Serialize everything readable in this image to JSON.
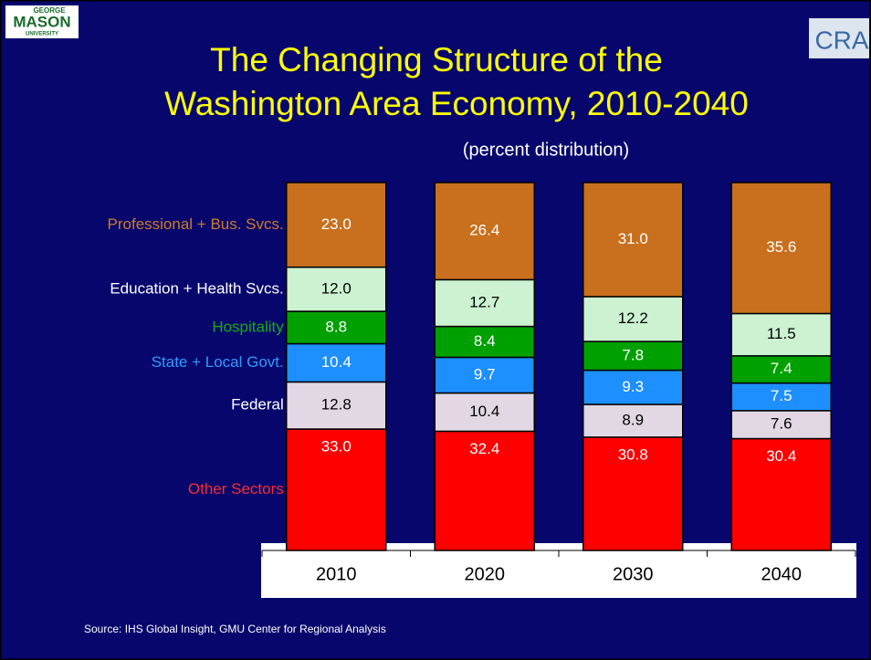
{
  "logos": {
    "left": [
      "GEORGE",
      "MASON",
      "UNIVERSITY"
    ],
    "right": "CRA"
  },
  "chart_data": {
    "type": "stacked-bar",
    "title": [
      "The Changing Structure of the",
      "Washington Area Economy, 2010-2040"
    ],
    "subtitle": "(percent distribution)",
    "source": "Source: IHS Global Insight, GMU Center for Regional Analysis",
    "categories": [
      "2010",
      "2020",
      "2030",
      "2040"
    ],
    "ylim": [
      0,
      100
    ],
    "series": [
      {
        "name": "Other Sectors",
        "color": "#ff0000",
        "label_color": "#ff2a2a",
        "text_color": "#ffffff",
        "values": [
          33.0,
          32.4,
          30.8,
          30.4
        ],
        "value_labels": [
          "33.0",
          "32.4",
          "30.8",
          "30.4"
        ]
      },
      {
        "name": "Federal",
        "color": "#e2d8e4",
        "label_color": "#ffffff",
        "text_color": "#000000",
        "values": [
          12.8,
          10.4,
          8.9,
          7.6
        ],
        "value_labels": [
          "12.8",
          "10.4",
          "8.9",
          "7.6"
        ]
      },
      {
        "name": "State + Local Govt.",
        "color": "#1e8fff",
        "label_color": "#2f9bff",
        "text_color": "#ffffff",
        "values": [
          10.4,
          9.7,
          9.3,
          7.5
        ],
        "value_labels": [
          "10.4",
          "9.7",
          "9.3",
          "7.5"
        ]
      },
      {
        "name": "Hospitality",
        "color": "#00a000",
        "label_color": "#10b010",
        "text_color": "#ffffff",
        "values": [
          8.8,
          8.4,
          7.8,
          7.4
        ],
        "value_labels": [
          "8.8",
          "8.4",
          "7.8",
          "7.4"
        ]
      },
      {
        "name": "Education + Health Svcs.",
        "color": "#ccf2d2",
        "label_color": "#ffffff",
        "text_color": "#000000",
        "values": [
          12.0,
          12.7,
          12.2,
          11.5
        ],
        "value_labels": [
          "12.0",
          "12.7",
          "12.2",
          "11.5"
        ]
      },
      {
        "name": "Professional + Bus. Svcs.",
        "color": "#c8701e",
        "label_color": "#d07a2a",
        "text_color": "#ffffff",
        "values": [
          23.0,
          26.4,
          31.0,
          35.6
        ],
        "value_labels": [
          "23.0",
          "26.4",
          "31.0",
          "35.6"
        ]
      }
    ]
  }
}
